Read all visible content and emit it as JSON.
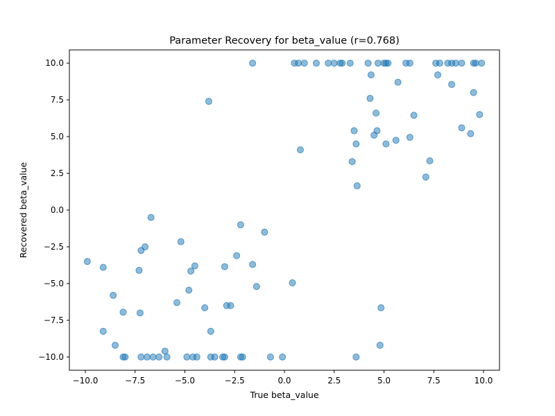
{
  "chart_data": {
    "type": "scatter",
    "title": "Parameter Recovery for beta_value (r=0.768)",
    "xlabel": "True beta_value",
    "ylabel": "Recovered beta_value",
    "xlim": [
      -10.8,
      10.8
    ],
    "ylim": [
      -10.9,
      10.9
    ],
    "xticks": [
      -10.0,
      -7.5,
      -5.0,
      -2.5,
      0.0,
      2.5,
      5.0,
      7.5,
      10.0
    ],
    "yticks": [
      -10.0,
      -7.5,
      -5.0,
      -2.5,
      0.0,
      2.5,
      5.0,
      7.5,
      10.0
    ],
    "xtick_labels": [
      "−10.0",
      "−7.5",
      "−5.0",
      "−2.5",
      "0.0",
      "2.5",
      "5.0",
      "7.5",
      "10.0"
    ],
    "ytick_labels": [
      "−10.0",
      "−7.5",
      "−5.0",
      "−2.5",
      "0.0",
      "2.5",
      "5.0",
      "7.5",
      "10.0"
    ],
    "grid": false,
    "marker_color": "#1f77b4",
    "marker_alpha": 0.5,
    "points": [
      {
        "x": -1.6,
        "y": 10.0
      },
      {
        "x": 0.5,
        "y": 10.0
      },
      {
        "x": 0.7,
        "y": 10.0
      },
      {
        "x": 1.0,
        "y": 10.0
      },
      {
        "x": 1.6,
        "y": 10.0
      },
      {
        "x": 2.2,
        "y": 10.0
      },
      {
        "x": 2.5,
        "y": 10.0
      },
      {
        "x": 2.8,
        "y": 10.0
      },
      {
        "x": 2.9,
        "y": 10.0
      },
      {
        "x": 3.3,
        "y": 10.0
      },
      {
        "x": 4.2,
        "y": 10.0
      },
      {
        "x": 4.7,
        "y": 10.0
      },
      {
        "x": 5.0,
        "y": 10.0
      },
      {
        "x": 5.1,
        "y": 10.0
      },
      {
        "x": 5.2,
        "y": 10.0
      },
      {
        "x": 6.1,
        "y": 10.0
      },
      {
        "x": 6.3,
        "y": 10.0
      },
      {
        "x": 7.6,
        "y": 10.0
      },
      {
        "x": 7.8,
        "y": 10.0
      },
      {
        "x": 8.2,
        "y": 10.0
      },
      {
        "x": 8.4,
        "y": 10.0
      },
      {
        "x": 8.6,
        "y": 10.0
      },
      {
        "x": 8.9,
        "y": 10.0
      },
      {
        "x": 9.5,
        "y": 10.0
      },
      {
        "x": 9.6,
        "y": 10.0
      },
      {
        "x": 9.9,
        "y": 10.0
      },
      {
        "x": 4.35,
        "y": 9.2
      },
      {
        "x": 7.7,
        "y": 9.2
      },
      {
        "x": 5.7,
        "y": 8.7
      },
      {
        "x": 8.4,
        "y": 8.55
      },
      {
        "x": 9.5,
        "y": 8.0
      },
      {
        "x": 4.3,
        "y": 7.6
      },
      {
        "x": -3.8,
        "y": 7.4
      },
      {
        "x": 4.6,
        "y": 6.6
      },
      {
        "x": 6.5,
        "y": 6.45
      },
      {
        "x": 9.8,
        "y": 6.5
      },
      {
        "x": 8.9,
        "y": 5.6
      },
      {
        "x": 3.5,
        "y": 5.4
      },
      {
        "x": 4.65,
        "y": 5.4
      },
      {
        "x": 4.5,
        "y": 5.1
      },
      {
        "x": 9.35,
        "y": 5.2
      },
      {
        "x": 6.3,
        "y": 4.95
      },
      {
        "x": 5.6,
        "y": 4.75
      },
      {
        "x": 3.6,
        "y": 4.5
      },
      {
        "x": 5.1,
        "y": 4.5
      },
      {
        "x": 0.8,
        "y": 4.1
      },
      {
        "x": 3.4,
        "y": 3.3
      },
      {
        "x": 7.3,
        "y": 3.35
      },
      {
        "x": 7.1,
        "y": 2.25
      },
      {
        "x": 3.65,
        "y": 1.65
      },
      {
        "x": -6.7,
        "y": -0.5
      },
      {
        "x": -2.2,
        "y": -1.0
      },
      {
        "x": -1.0,
        "y": -1.5
      },
      {
        "x": -5.2,
        "y": -2.15
      },
      {
        "x": -7.0,
        "y": -2.5
      },
      {
        "x": -7.2,
        "y": -2.75
      },
      {
        "x": -2.4,
        "y": -3.1
      },
      {
        "x": -9.9,
        "y": -3.5
      },
      {
        "x": -1.6,
        "y": -3.7
      },
      {
        "x": -9.1,
        "y": -3.9
      },
      {
        "x": -4.5,
        "y": -3.8
      },
      {
        "x": -3.0,
        "y": -3.85
      },
      {
        "x": -7.3,
        "y": -4.1
      },
      {
        "x": -4.7,
        "y": -4.15
      },
      {
        "x": 0.4,
        "y": -4.95
      },
      {
        "x": -1.4,
        "y": -5.2
      },
      {
        "x": -4.8,
        "y": -5.45
      },
      {
        "x": -8.6,
        "y": -5.8
      },
      {
        "x": -5.4,
        "y": -6.3
      },
      {
        "x": -2.9,
        "y": -6.5
      },
      {
        "x": -2.7,
        "y": -6.5
      },
      {
        "x": -4.0,
        "y": -6.65
      },
      {
        "x": 4.85,
        "y": -6.65
      },
      {
        "x": -8.1,
        "y": -6.95
      },
      {
        "x": -7.25,
        "y": -7.0
      },
      {
        "x": -3.7,
        "y": -8.25
      },
      {
        "x": -9.1,
        "y": -8.25
      },
      {
        "x": -8.5,
        "y": -9.2
      },
      {
        "x": 4.8,
        "y": -9.2
      },
      {
        "x": -6.0,
        "y": -9.6
      },
      {
        "x": -8.1,
        "y": -10.0
      },
      {
        "x": -8.0,
        "y": -10.0
      },
      {
        "x": -7.2,
        "y": -10.0
      },
      {
        "x": -6.9,
        "y": -10.0
      },
      {
        "x": -6.6,
        "y": -10.0
      },
      {
        "x": -6.3,
        "y": -10.0
      },
      {
        "x": -5.9,
        "y": -10.0
      },
      {
        "x": -4.9,
        "y": -10.0
      },
      {
        "x": -4.6,
        "y": -10.0
      },
      {
        "x": -4.4,
        "y": -10.0
      },
      {
        "x": -3.7,
        "y": -10.0
      },
      {
        "x": -3.5,
        "y": -10.0
      },
      {
        "x": -3.1,
        "y": -10.0
      },
      {
        "x": -3.0,
        "y": -10.0
      },
      {
        "x": -2.2,
        "y": -10.0
      },
      {
        "x": -2.1,
        "y": -10.0
      },
      {
        "x": -0.7,
        "y": -10.0
      },
      {
        "x": -0.1,
        "y": -10.0
      },
      {
        "x": 3.6,
        "y": -10.0
      }
    ]
  }
}
